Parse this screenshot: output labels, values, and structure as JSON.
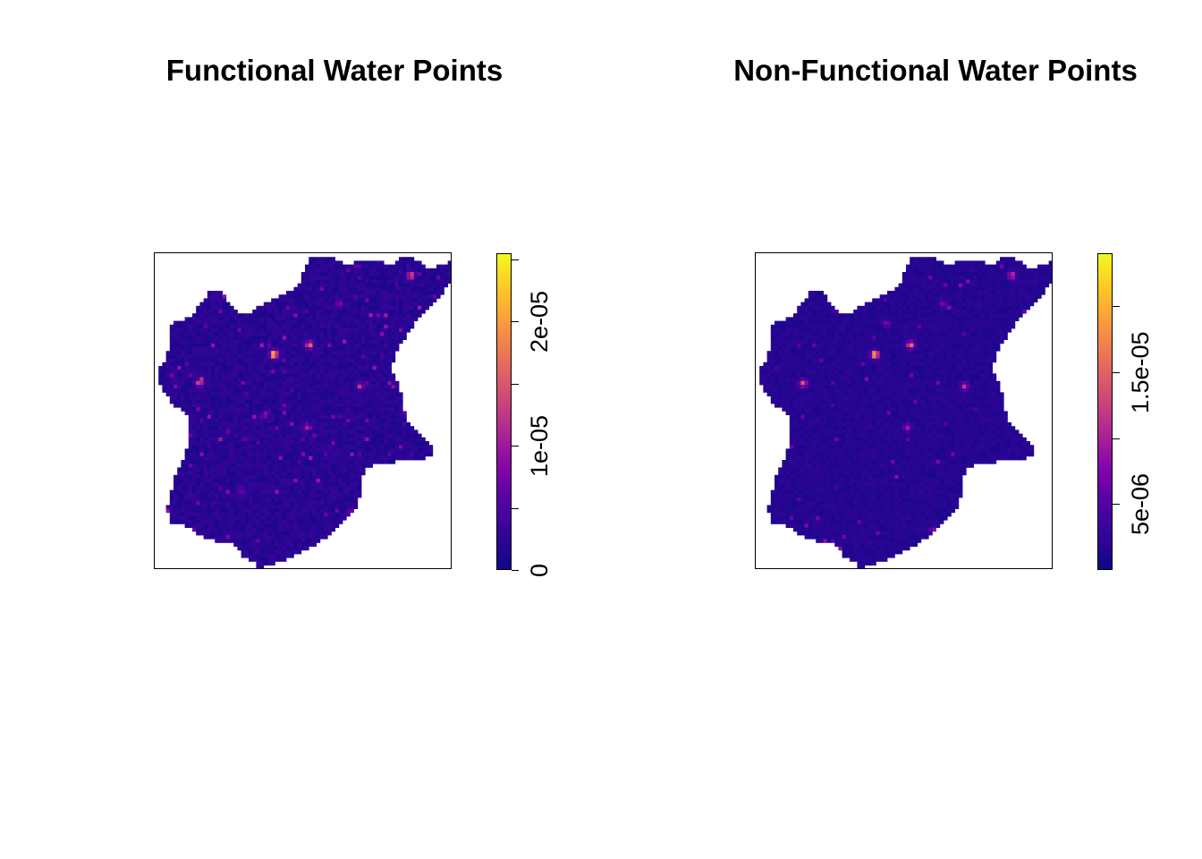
{
  "chart_data": [
    {
      "type": "heatmap",
      "title": "Functional Water Points",
      "color_scale": "plasma",
      "palette": [
        "#0d0887",
        "#2a0593",
        "#41049d",
        "#5c01a6",
        "#7e03a8",
        "#9c179e",
        "#b52f8c",
        "#cc4778",
        "#de5f65",
        "#ed7953",
        "#f89540",
        "#fdb42f",
        "#fbd524",
        "#f0f921"
      ],
      "legend": {
        "position": "right",
        "range": [
          0,
          2.55e-05
        ],
        "ticks": [
          {
            "value": 0,
            "label": "0"
          },
          {
            "value": 5e-06,
            "label": ""
          },
          {
            "value": 1e-05,
            "label": "1e-05"
          },
          {
            "value": 1.5e-05,
            "label": ""
          },
          {
            "value": 2e-05,
            "label": "2e-05"
          },
          {
            "value": 2.5e-05,
            "label": ""
          }
        ]
      },
      "background_value": 1.5e-06,
      "hotspots": [
        {
          "x": 0.3,
          "y": 0.17,
          "value": 1.8e-05
        },
        {
          "x": 0.4,
          "y": 0.32,
          "value": 2.5e-05
        },
        {
          "x": 0.52,
          "y": 0.29,
          "value": 1.6e-05
        },
        {
          "x": 0.15,
          "y": 0.41,
          "value": 1.4e-05
        },
        {
          "x": 0.86,
          "y": 0.07,
          "value": 1.5e-05
        },
        {
          "x": 0.69,
          "y": 0.42,
          "value": 1.1e-05
        },
        {
          "x": 0.51,
          "y": 0.55,
          "value": 9e-06
        },
        {
          "x": 0.37,
          "y": 0.51,
          "value": 7e-06
        },
        {
          "x": 0.62,
          "y": 0.16,
          "value": 7e-06
        },
        {
          "x": 0.29,
          "y": 0.75,
          "value": 6e-06
        },
        {
          "x": 0.66,
          "y": 0.82,
          "value": 8e-06
        }
      ]
    },
    {
      "type": "heatmap",
      "title": "Non-Functional Water Points",
      "color_scale": "plasma",
      "palette": [
        "#0d0887",
        "#2a0593",
        "#41049d",
        "#5c01a6",
        "#7e03a8",
        "#9c179e",
        "#b52f8c",
        "#cc4778",
        "#de5f65",
        "#ed7953",
        "#f89540",
        "#fdb42f",
        "#fbd524",
        "#f0f921"
      ],
      "legend": {
        "position": "right",
        "range": [
          0,
          2.4e-05
        ],
        "ticks": [
          {
            "value": 5e-06,
            "label": "5e-06"
          },
          {
            "value": 1e-05,
            "label": ""
          },
          {
            "value": 1.5e-05,
            "label": "1.5e-05"
          },
          {
            "value": 2e-05,
            "label": ""
          }
        ]
      },
      "background_value": 1.5e-06,
      "hotspots": [
        {
          "x": 0.28,
          "y": 0.17,
          "value": 1.9e-05
        },
        {
          "x": 0.4,
          "y": 0.32,
          "value": 2.2e-05
        },
        {
          "x": 0.52,
          "y": 0.29,
          "value": 1.6e-05
        },
        {
          "x": 0.16,
          "y": 0.41,
          "value": 1.4e-05
        },
        {
          "x": 0.86,
          "y": 0.07,
          "value": 1.1e-05
        },
        {
          "x": 0.7,
          "y": 0.42,
          "value": 1e-05
        },
        {
          "x": 0.51,
          "y": 0.55,
          "value": 8e-06
        },
        {
          "x": 0.44,
          "y": 0.22,
          "value": 6e-06
        },
        {
          "x": 0.63,
          "y": 0.16,
          "value": 6e-06
        }
      ]
    }
  ]
}
